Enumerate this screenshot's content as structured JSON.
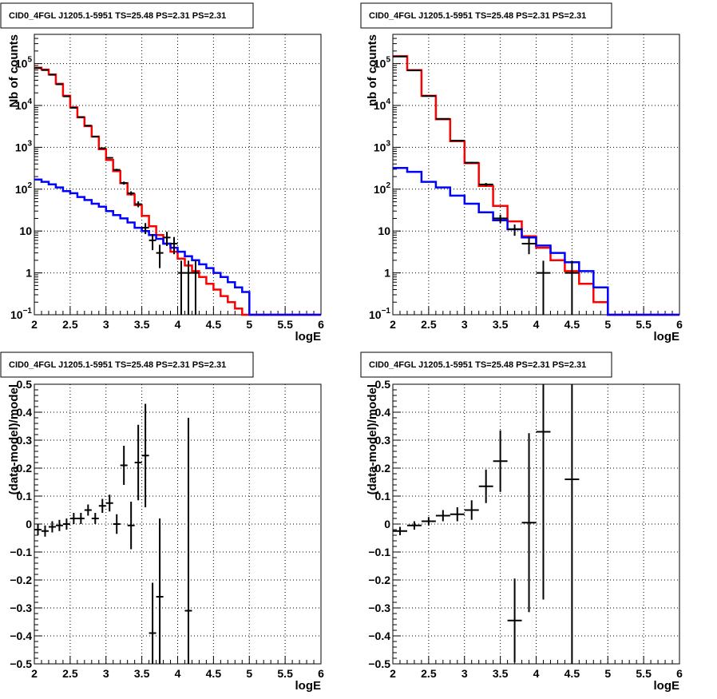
{
  "chart_data": [
    {
      "type": "step-histogram-with-errorbars",
      "title": "CID0_4FGL J1205.1-5951 TS=25.48 PS=2.31 PS=2.31",
      "xlabel": "logE",
      "ylabel": "Nb of counts",
      "xlim": [
        2,
        6
      ],
      "ylim": [
        0.1,
        500000
      ],
      "yscale": "log",
      "grid": true,
      "x_ticks": [
        "2",
        "2.5",
        "3",
        "3.5",
        "4",
        "4.5",
        "5",
        "5.5",
        "6"
      ],
      "y_ticks": [
        {
          "value": 0.1,
          "base": "10",
          "exp": "−1"
        },
        {
          "value": 1,
          "text": "1"
        },
        {
          "value": 10,
          "text": "10"
        },
        {
          "value": 100,
          "base": "10",
          "exp": "2"
        },
        {
          "value": 1000,
          "base": "10",
          "exp": "3"
        },
        {
          "value": 10000,
          "base": "10",
          "exp": "4"
        },
        {
          "value": 100000,
          "base": "10",
          "exp": "5"
        }
      ],
      "bin_edges": [
        2.0,
        2.1,
        2.2,
        2.3,
        2.4,
        2.5,
        2.6,
        2.7,
        2.8,
        2.9,
        3.0,
        3.1,
        3.2,
        3.3,
        3.4,
        3.5,
        3.6,
        3.7,
        3.8,
        3.9,
        4.0,
        4.1,
        4.2,
        4.3,
        4.4,
        4.5,
        4.6,
        4.7,
        4.8,
        4.9,
        5.0,
        5.1,
        5.2,
        5.3,
        5.4,
        5.5,
        5.6,
        5.7,
        5.8,
        5.9,
        6.0
      ],
      "series": [
        {
          "color": "#ff0000",
          "values": [
            80000,
            72000,
            55000,
            33000,
            17000,
            9000,
            5200,
            3200,
            1800,
            900,
            500,
            270,
            140,
            75,
            42,
            23,
            13,
            8,
            5,
            3.2,
            2.2,
            1.5,
            1.1,
            0.8,
            0.55,
            0.4,
            0.28,
            0.2,
            0.14,
            0.1,
            0.1,
            0.1,
            0.1,
            0.1,
            0.1,
            0.1,
            0.1,
            0.1,
            0.1,
            0.1
          ]
        },
        {
          "color": "#0000ff",
          "values": [
            170,
            150,
            130,
            110,
            90,
            80,
            65,
            55,
            45,
            38,
            30,
            24,
            20,
            16,
            12,
            10,
            8,
            6.5,
            5,
            4,
            3.2,
            2.5,
            2,
            1.6,
            1.3,
            1,
            0.8,
            0.6,
            0.45,
            0.35,
            0.1,
            0.1,
            0.1,
            0.1,
            0.1,
            0.1,
            0.1,
            0.1,
            0.1,
            0.1
          ]
        }
      ],
      "points": [
        {
          "x": 2.05,
          "y": 78000,
          "dy": 300
        },
        {
          "x": 2.15,
          "y": 70000,
          "dy": 260
        },
        {
          "x": 2.25,
          "y": 54000,
          "dy": 230
        },
        {
          "x": 2.35,
          "y": 32000,
          "dy": 180
        },
        {
          "x": 2.45,
          "y": 16500,
          "dy": 130
        },
        {
          "x": 2.55,
          "y": 8800,
          "dy": 95
        },
        {
          "x": 2.65,
          "y": 5300,
          "dy": 73
        },
        {
          "x": 2.75,
          "y": 3300,
          "dy": 57
        },
        {
          "x": 2.85,
          "y": 1800,
          "dy": 42
        },
        {
          "x": 2.95,
          "y": 950,
          "dy": 31
        },
        {
          "x": 3.05,
          "y": 560,
          "dy": 24
        },
        {
          "x": 3.15,
          "y": 290,
          "dy": 17
        },
        {
          "x": 3.25,
          "y": 140,
          "dy": 12
        },
        {
          "x": 3.35,
          "y": 80,
          "dy": 9
        },
        {
          "x": 3.45,
          "y": 44,
          "dy": 7
        },
        {
          "x": 3.55,
          "y": 12,
          "dy": 3.5
        },
        {
          "x": 3.65,
          "y": 6,
          "dy": 2.5
        },
        {
          "x": 3.75,
          "y": 3,
          "dy": 1.7
        },
        {
          "x": 3.85,
          "y": 7,
          "dy": 2.6
        },
        {
          "x": 3.95,
          "y": 5,
          "dy": 2.2
        },
        {
          "x": 4.05,
          "y": 1,
          "dy": 0.95
        },
        {
          "x": 4.15,
          "y": 1,
          "dy": 0.95
        },
        {
          "x": 4.25,
          "y": 1,
          "dy": 0.95
        }
      ]
    },
    {
      "type": "step-histogram-with-errorbars",
      "title": "CID0_4FGL J1205.1-5951 TS=25.48 PS=2.31 PS=2.31",
      "xlabel": "logE",
      "ylabel": "nb of counts",
      "xlim": [
        2,
        6
      ],
      "ylim": [
        0.1,
        500000
      ],
      "yscale": "log",
      "grid": true,
      "x_ticks": [
        "2",
        "2.5",
        "3",
        "3.5",
        "4",
        "4.5",
        "5",
        "5.5",
        "6"
      ],
      "y_ticks": [
        {
          "value": 0.1,
          "base": "10",
          "exp": "−1"
        },
        {
          "value": 1,
          "text": "1"
        },
        {
          "value": 10,
          "text": "10"
        },
        {
          "value": 100,
          "base": "10",
          "exp": "2"
        },
        {
          "value": 1000,
          "base": "10",
          "exp": "3"
        },
        {
          "value": 10000,
          "base": "10",
          "exp": "4"
        },
        {
          "value": 100000,
          "base": "10",
          "exp": "5"
        }
      ],
      "bin_edges": [
        2.0,
        2.2,
        2.4,
        2.6,
        2.8,
        3.0,
        3.2,
        3.4,
        3.6,
        3.8,
        4.0,
        4.2,
        4.4,
        4.6,
        4.8,
        5.0,
        5.2,
        5.4,
        5.6,
        5.8,
        6.0
      ],
      "series": [
        {
          "color": "#ff0000",
          "values": [
            150000,
            70000,
            17000,
            4700,
            1400,
            420,
            120,
            40,
            17,
            7.5,
            4,
            2,
            1.1,
            0.55,
            0.2,
            0.1,
            0.1,
            0.1,
            0.1,
            0.1
          ]
        },
        {
          "color": "#0000ff",
          "values": [
            320,
            260,
            150,
            110,
            70,
            45,
            28,
            18,
            11,
            7,
            4.5,
            3,
            1.8,
            1.1,
            0.45,
            0.1,
            0.1,
            0.1,
            0.1,
            0.1
          ]
        }
      ],
      "points": [
        {
          "x": 2.1,
          "y": 148000,
          "dy": 380
        },
        {
          "x": 2.3,
          "y": 69000,
          "dy": 260
        },
        {
          "x": 2.5,
          "y": 16800,
          "dy": 130
        },
        {
          "x": 2.7,
          "y": 4800,
          "dy": 70
        },
        {
          "x": 2.9,
          "y": 1450,
          "dy": 38
        },
        {
          "x": 3.1,
          "y": 430,
          "dy": 21
        },
        {
          "x": 3.3,
          "y": 130,
          "dy": 11
        },
        {
          "x": 3.5,
          "y": 20,
          "dy": 4.5
        },
        {
          "x": 3.7,
          "y": 11,
          "dy": 3.3
        },
        {
          "x": 3.9,
          "y": 5,
          "dy": 2.2
        },
        {
          "x": 4.1,
          "y": 1,
          "dy": 0.95
        },
        {
          "x": 4.5,
          "y": 1,
          "dy": 0.95
        }
      ]
    },
    {
      "type": "scatter-errorbars",
      "title": "CID0_4FGL J1205.1-5951 TS=25.48 PS=2.31 PS=2.31",
      "xlabel": "logE",
      "ylabel": "(data-model)/model",
      "xlim": [
        2,
        6
      ],
      "ylim": [
        -0.5,
        0.5
      ],
      "grid": true,
      "x_ticks": [
        "2",
        "2.5",
        "3",
        "3.5",
        "4",
        "4.5",
        "5",
        "5.5",
        "6"
      ],
      "y_ticks": [
        "−0.5",
        "−0.4",
        "−0.3",
        "−0.2",
        "−0.1",
        "0",
        "0.1",
        "0.2",
        "0.3",
        "0.4",
        "0.5"
      ],
      "points": [
        {
          "x": 2.05,
          "y": -0.02,
          "dy": 0.02,
          "dx": 0.05
        },
        {
          "x": 2.15,
          "y": -0.025,
          "dy": 0.02,
          "dx": 0.05
        },
        {
          "x": 2.25,
          "y": -0.01,
          "dy": 0.02,
          "dx": 0.05
        },
        {
          "x": 2.35,
          "y": -0.005,
          "dy": 0.02,
          "dx": 0.05
        },
        {
          "x": 2.45,
          "y": 0.0,
          "dy": 0.02,
          "dx": 0.05
        },
        {
          "x": 2.55,
          "y": 0.02,
          "dy": 0.02,
          "dx": 0.05
        },
        {
          "x": 2.65,
          "y": 0.02,
          "dy": 0.02,
          "dx": 0.05
        },
        {
          "x": 2.75,
          "y": 0.05,
          "dy": 0.02,
          "dx": 0.05
        },
        {
          "x": 2.85,
          "y": 0.02,
          "dy": 0.02,
          "dx": 0.05
        },
        {
          "x": 2.95,
          "y": 0.065,
          "dy": 0.025,
          "dx": 0.05
        },
        {
          "x": 3.05,
          "y": 0.075,
          "dy": 0.03,
          "dx": 0.05
        },
        {
          "x": 3.15,
          "y": 0.0,
          "dy": 0.035,
          "dx": 0.05
        },
        {
          "x": 3.25,
          "y": 0.21,
          "dy": 0.07,
          "dx": 0.05
        },
        {
          "x": 3.35,
          "y": -0.005,
          "dy": 0.085,
          "dx": 0.05
        },
        {
          "x": 3.45,
          "y": 0.22,
          "dy": 0.135,
          "dx": 0.05
        },
        {
          "x": 3.55,
          "y": 0.245,
          "dy": 0.185,
          "dx": 0.05
        },
        {
          "x": 3.65,
          "y": -0.39,
          "dy": 0.18,
          "dx": 0.05
        },
        {
          "x": 3.75,
          "y": -0.26,
          "dy": 0.28,
          "dx": 0.05
        },
        {
          "x": 4.15,
          "y": -0.31,
          "dy": 0.69,
          "dx": 0.05
        }
      ]
    },
    {
      "type": "scatter-errorbars",
      "title": "CID0_4FGL J1205.1-5951 TS=25.48 PS=2.31 PS=2.31",
      "xlabel": "logE",
      "ylabel": "(data-model)/model",
      "xlim": [
        2,
        6
      ],
      "ylim": [
        -0.5,
        0.5
      ],
      "grid": true,
      "x_ticks": [
        "2",
        "2.5",
        "3",
        "3.5",
        "4",
        "4.5",
        "5",
        "5.5",
        "6"
      ],
      "y_ticks": [
        "−0.5",
        "−0.4",
        "−0.3",
        "−0.2",
        "−0.1",
        "0",
        "0.1",
        "0.2",
        "0.3",
        "0.4",
        "0.5"
      ],
      "points": [
        {
          "x": 2.1,
          "y": -0.025,
          "dy": 0.015,
          "dx": 0.1
        },
        {
          "x": 2.3,
          "y": -0.005,
          "dy": 0.015,
          "dx": 0.1
        },
        {
          "x": 2.5,
          "y": 0.01,
          "dy": 0.015,
          "dx": 0.1
        },
        {
          "x": 2.7,
          "y": 0.03,
          "dy": 0.02,
          "dx": 0.1
        },
        {
          "x": 2.9,
          "y": 0.035,
          "dy": 0.025,
          "dx": 0.1
        },
        {
          "x": 3.1,
          "y": 0.05,
          "dy": 0.035,
          "dx": 0.1
        },
        {
          "x": 3.3,
          "y": 0.135,
          "dy": 0.06,
          "dx": 0.1
        },
        {
          "x": 3.5,
          "y": 0.225,
          "dy": 0.11,
          "dx": 0.1
        },
        {
          "x": 3.7,
          "y": -0.345,
          "dy": 0.15,
          "dx": 0.1
        },
        {
          "x": 3.9,
          "y": 0.005,
          "dy": 0.32,
          "dx": 0.1
        },
        {
          "x": 4.1,
          "y": 0.33,
          "dy": 0.6,
          "dx": 0.1
        },
        {
          "x": 4.5,
          "y": 0.16,
          "dy": 0.84,
          "dx": 0.1
        }
      ]
    }
  ]
}
